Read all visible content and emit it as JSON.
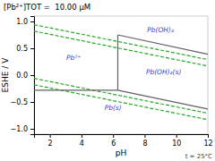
{
  "chart_data": {
    "type": "line",
    "title": "[Pb²⁺]TOT =  10.00 μM",
    "x_label": "pH",
    "y_label": "ESHE / V",
    "xlim": [
      1,
      12
    ],
    "ylim": [
      -1.1,
      1.1
    ],
    "xticks": [
      2,
      4,
      6,
      8,
      10,
      12
    ],
    "yticks": [
      {
        "value": -1.0,
        "label": "−1.0"
      },
      {
        "value": -0.5,
        "label": "−0.5"
      },
      {
        "value": 0.0,
        "label": "0.0"
      },
      {
        "value": 0.5,
        "label": "0.5"
      },
      {
        "value": 1.0,
        "label": "1.0"
      }
    ],
    "grid": false,
    "series": [
      {
        "x": [
          1,
          12
        ],
        "values": [
          0.94,
          0.29
        ],
        "color": "#22aa22",
        "line_style": "dashed"
      },
      {
        "x": [
          1,
          12
        ],
        "values": [
          0.82,
          0.17
        ],
        "color": "#22aa22",
        "line_style": "dashed"
      },
      {
        "x": [
          1,
          12
        ],
        "values": [
          -0.06,
          -0.71
        ],
        "color": "#22aa22",
        "line_style": "dashed"
      },
      {
        "x": [
          1,
          12
        ],
        "values": [
          -0.18,
          -0.83
        ],
        "color": "#22aa22",
        "line_style": "dashed"
      },
      {
        "x": [
          1,
          6.3
        ],
        "values": [
          -0.28,
          -0.28
        ],
        "color": "#606060",
        "line_style": "solid"
      },
      {
        "x": [
          6.3,
          6.3
        ],
        "values": [
          -0.28,
          0.75
        ],
        "color": "#606060",
        "line_style": "solid"
      },
      {
        "x": [
          6.3,
          12
        ],
        "values": [
          0.75,
          0.39
        ],
        "color": "#606060",
        "line_style": "solid"
      },
      {
        "x": [
          6.3,
          12
        ],
        "values": [
          -0.28,
          -0.63
        ],
        "color": "#606060",
        "line_style": "solid"
      }
    ],
    "annotations": [
      {
        "text": "Pb²⁺",
        "x": 3.5,
        "y": 0.32,
        "color": "#4444cc"
      },
      {
        "text": "Pb(OH)₂",
        "x": 9.0,
        "y": 0.83,
        "color": "#4444cc"
      },
      {
        "text": "Pb(OH)₂(s)",
        "x": 9.2,
        "y": 0.05,
        "color": "#4444cc"
      },
      {
        "text": "Pb(s)",
        "x": 6.0,
        "y": -0.62,
        "color": "#4444cc"
      },
      {
        "text": "t = 25°C"
      }
    ]
  }
}
